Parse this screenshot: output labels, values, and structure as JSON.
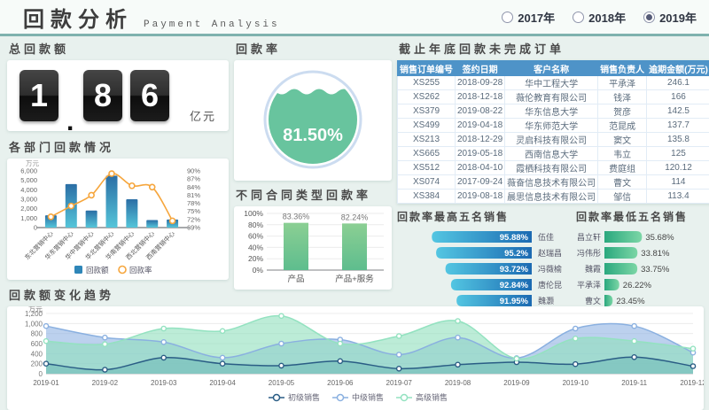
{
  "header": {
    "title": "回款分析",
    "subtitle": "Payment Analysis",
    "years": [
      {
        "label": "2017年",
        "selected": false
      },
      {
        "label": "2018年",
        "selected": false
      },
      {
        "label": "2019年",
        "selected": true
      }
    ]
  },
  "total_payment": {
    "title": "总回款额",
    "cards": [
      "1",
      "8",
      "6"
    ],
    "decimal_after": 0,
    "unit": "亿元"
  },
  "table": {
    "title": "截止年底回款未完成订单",
    "headers": [
      "销售订单编号",
      "签约日期",
      "客户名称",
      "销售负责人",
      "逾期金额(万元)"
    ],
    "rows": [
      [
        "XS255",
        "2018-09-28",
        "华中工程大学",
        "平承泽",
        "246.1"
      ],
      [
        "XS262",
        "2018-12-18",
        "薇伦教育有限公司",
        "钱泽",
        "166"
      ],
      [
        "XS379",
        "2019-08-22",
        "华东信息大学",
        "贺彦",
        "142.5"
      ],
      [
        "XS499",
        "2019-04-18",
        "华东师范大学",
        "范昆成",
        "137.7"
      ],
      [
        "XS213",
        "2018-12-29",
        "灵启科技有限公司",
        "窦文",
        "135.8"
      ],
      [
        "XS665",
        "2019-05-18",
        "西南信息大学",
        "韦立",
        "125"
      ],
      [
        "XS512",
        "2018-04-10",
        "霞栖科技有限公司",
        "费庭组",
        "120.12"
      ],
      [
        "XS074",
        "2017-09-24",
        "薇奋信息技术有限公司",
        "曹文",
        "114"
      ],
      [
        "XS384",
        "2019-08-18",
        "晨思信息技术有限公司",
        "邹信",
        "113.4"
      ]
    ]
  },
  "chart_data": [
    {
      "id": "dept",
      "type": "bar+line",
      "title": "各部门回款情况",
      "unit": "万元",
      "categories": [
        "东北营销中心",
        "华东营销中心",
        "华中营销中心",
        "华北营销中心",
        "华南营销中心",
        "西北营销中心",
        "西南营销中心"
      ],
      "series": [
        {
          "name": "回款额",
          "type": "bar",
          "values": [
            1300,
            4600,
            1800,
            5500,
            3000,
            800,
            850
          ]
        },
        {
          "name": "回款率",
          "type": "line",
          "values": [
            73,
            77,
            81,
            89,
            84.5,
            84,
            71.5
          ]
        }
      ],
      "left_axis": {
        "min": 0,
        "max": 6000,
        "step": 1000
      },
      "right_axis": {
        "min": 69,
        "max": 90,
        "step": 3
      }
    },
    {
      "id": "rate_gauge",
      "type": "gauge",
      "title": "回款率",
      "value": 81.5,
      "label": "81.50%"
    },
    {
      "id": "contract",
      "type": "bar",
      "title": "不同合同类型回款率",
      "categories": [
        "产品",
        "产品+服务"
      ],
      "values": [
        83.36,
        82.24
      ],
      "labels": [
        "83.36%",
        "82.24%"
      ],
      "ylim": [
        0,
        100
      ],
      "ystep": 20
    },
    {
      "id": "top5",
      "type": "hbar",
      "title": "回款率最高五名销售",
      "categories": [
        "伍佳",
        "赵瑞昌",
        "冯薇榆",
        "唐伦昆",
        "魏灏"
      ],
      "values": [
        95.88,
        95.2,
        93.72,
        92.84,
        91.95
      ],
      "labels": [
        "95.88%",
        "95.2%",
        "93.72%",
        "92.84%",
        "91.95%"
      ],
      "axis_ticks": [
        "100%",
        "95%",
        "90%",
        "85%",
        "80%"
      ],
      "xlim": [
        100,
        80
      ],
      "direction": "right-to-left"
    },
    {
      "id": "bottom5",
      "type": "hbar",
      "title": "回款率最低五名销售",
      "categories": [
        "昌立轩",
        "冯伟彤",
        "魏霞",
        "平承泽",
        "曹文"
      ],
      "values": [
        35.68,
        33.81,
        33.75,
        26.22,
        23.45
      ],
      "labels": [
        "35.68%",
        "33.81%",
        "33.75%",
        "26.22%",
        "23.45%"
      ],
      "axis_ticks": [
        "20%",
        "30%",
        "40%",
        "50%",
        "60%"
      ],
      "xlim": [
        20,
        60
      ],
      "direction": "left-to-right"
    },
    {
      "id": "trend",
      "type": "area",
      "title": "回款额变化趋势",
      "unit": "万元",
      "x": [
        "2019-01",
        "2019-02",
        "2019-03",
        "2019-04",
        "2019-05",
        "2019-06",
        "2019-07",
        "2019-08",
        "2019-09",
        "2019-10",
        "2019-11",
        "2019-12"
      ],
      "series": [
        {
          "name": "初级销售",
          "values": [
            200,
            80,
            320,
            200,
            160,
            250,
            100,
            180,
            230,
            190,
            330,
            150
          ]
        },
        {
          "name": "中级销售",
          "values": [
            950,
            720,
            630,
            320,
            600,
            680,
            380,
            720,
            310,
            900,
            950,
            420
          ]
        },
        {
          "name": "高级销售",
          "values": [
            650,
            590,
            900,
            850,
            1150,
            600,
            750,
            1050,
            300,
            700,
            650,
            500
          ]
        }
      ],
      "ylim": [
        0,
        1200
      ],
      "ystep": 200
    }
  ],
  "colors": {
    "accent_teal": "#7fb2ae",
    "table_header": "#4e93c8",
    "bar_blue_top": "#2b6ea5",
    "bar_blue_bottom": "#55c5d9",
    "line_orange": "#f6a63d",
    "gauge_green": "#68c49e",
    "gauge_ring": "#ccdcf0",
    "green_bar_top": "#8bcf93",
    "green_bar_bottom": "#5ebd8e",
    "hbar_blue_light": "#53c6e2",
    "hbar_blue_dark": "#1b6ab2",
    "hbar_green_dark": "#2aa87e",
    "hbar_green_light": "#7cd6a6",
    "trend_navy": "#2a5d85",
    "trend_blue": "#8ab0e0",
    "trend_green": "#93e2c0",
    "trend_navy_fill": "#2f7f96",
    "trend_blue_fill": "#8fb3e2",
    "trend_green_fill": "#8fe0bd"
  }
}
